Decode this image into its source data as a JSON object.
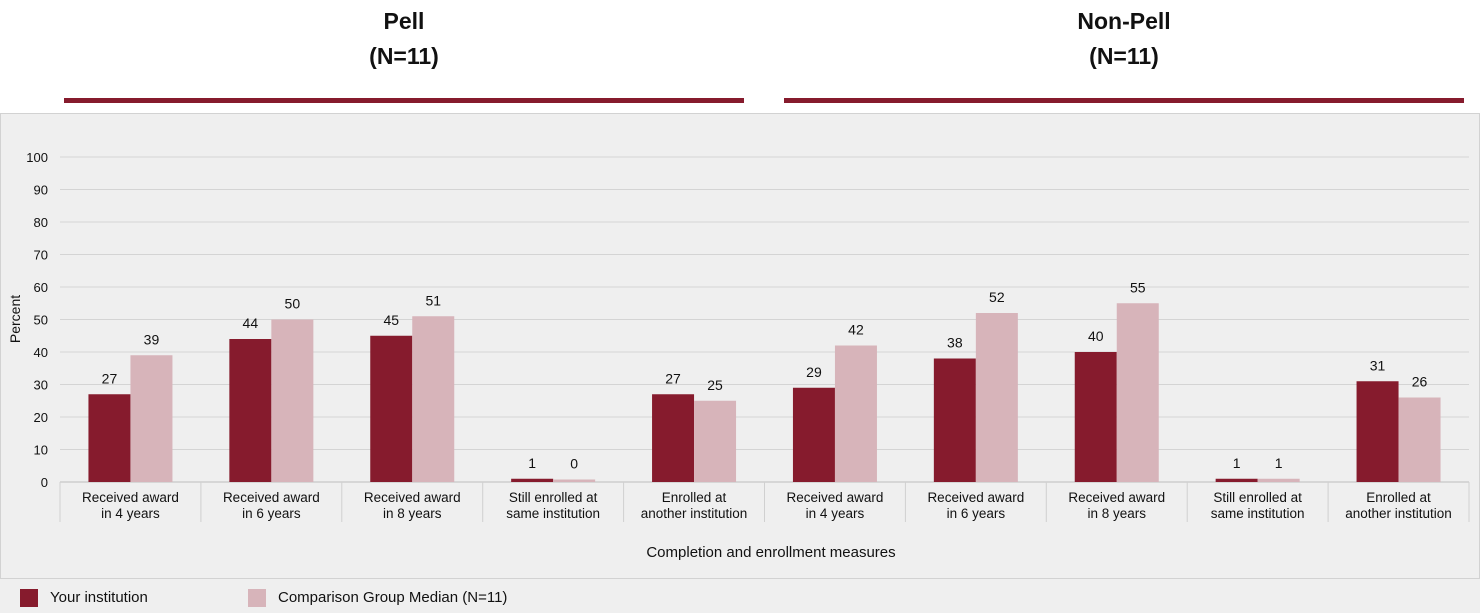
{
  "chart_data": {
    "type": "bar",
    "groups": [
      {
        "title": "Pell",
        "subtitle": "(N=11)",
        "start": 0,
        "count": 5
      },
      {
        "title": "Non-Pell",
        "subtitle": "(N=11)",
        "start": 5,
        "count": 5
      }
    ],
    "categories": [
      [
        "Received award",
        "in 4 years"
      ],
      [
        "Received award",
        "in 6 years"
      ],
      [
        "Received award",
        "in 8 years"
      ],
      [
        "Still enrolled at",
        "same institution"
      ],
      [
        "Enrolled at",
        "another institution"
      ],
      [
        "Received award",
        "in 4 years"
      ],
      [
        "Received award",
        "in 6 years"
      ],
      [
        "Received award",
        "in 8 years"
      ],
      [
        "Still enrolled at",
        "same institution"
      ],
      [
        "Enrolled at",
        "another institution"
      ]
    ],
    "series": [
      {
        "name": "Your institution",
        "color": "#861b2d",
        "values": [
          27,
          44,
          45,
          1,
          27,
          29,
          38,
          40,
          1,
          31
        ]
      },
      {
        "name": "Comparison Group Median (N=11)",
        "color": "#d7b4ba",
        "values": [
          39,
          50,
          51,
          0,
          25,
          42,
          52,
          55,
          1,
          26
        ]
      }
    ],
    "xlabel": "Completion and enrollment measures",
    "ylabel": "Percent",
    "ylim": [
      0,
      100
    ],
    "yticks": [
      0,
      10,
      20,
      30,
      40,
      50,
      60,
      70,
      80,
      90,
      100
    ],
    "grid": true,
    "legend_position": "bottom-left"
  }
}
